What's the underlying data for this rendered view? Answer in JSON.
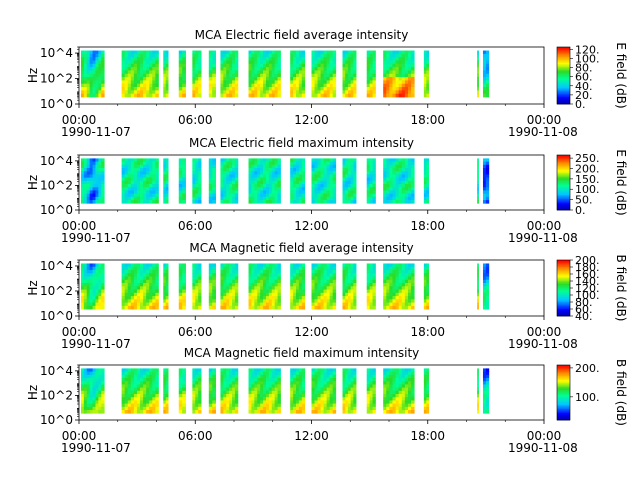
{
  "chart_data": [
    {
      "type": "heatmap",
      "title": "MCA  Electric field average intensity",
      "ylabel": "Hz",
      "y_scale": "log",
      "ylim": [
        1,
        30000
      ],
      "y_ticks": [
        "10^0",
        "10^2",
        "10^4"
      ],
      "x_ticks": [
        "00:00",
        "06:00",
        "12:00",
        "18:00",
        "00:00"
      ],
      "x_dates": [
        "1990-11-07",
        "1990-11-08"
      ],
      "colorbar_label": "E field (dB)",
      "colorbar_ticks": [
        "120.",
        "100.",
        "80.",
        "60.",
        "40.",
        "20.",
        "0."
      ],
      "colorbar_range": [
        0,
        125
      ],
      "colormap": "rainbow",
      "base": 45,
      "hot_low": true
    },
    {
      "type": "heatmap",
      "title": "MCA  Electric field maximum intensity",
      "ylabel": "Hz",
      "y_scale": "log",
      "ylim": [
        1,
        30000
      ],
      "y_ticks": [
        "10^0",
        "10^2",
        "10^4"
      ],
      "x_ticks": [
        "00:00",
        "06:00",
        "12:00",
        "18:00",
        "00:00"
      ],
      "x_dates": [
        "1990-11-07",
        "1990-11-08"
      ],
      "colorbar_label": "E field (dB)",
      "colorbar_ticks": [
        "250.",
        "200.",
        "150.",
        "100.",
        "50.",
        "0."
      ],
      "colorbar_range": [
        0,
        265
      ],
      "colormap": "rainbow",
      "base": 95,
      "hot_low": false
    },
    {
      "type": "heatmap",
      "title": "MCA  Magnetic field average intensity",
      "ylabel": "Hz",
      "y_scale": "log",
      "ylim": [
        1,
        30000
      ],
      "y_ticks": [
        "10^0",
        "10^2",
        "10^4"
      ],
      "x_ticks": [
        "00:00",
        "06:00",
        "12:00",
        "18:00",
        "00:00"
      ],
      "x_dates": [
        "1990-11-07",
        "1990-11-08"
      ],
      "colorbar_label": "B field (dB)",
      "colorbar_ticks": [
        "200.",
        "180.",
        "160.",
        "140.",
        "120.",
        "100.",
        "80.",
        "60.",
        "40."
      ],
      "colorbar_range": [
        40,
        200
      ],
      "colormap": "rainbow",
      "base": 110,
      "hot_low": true
    },
    {
      "type": "heatmap",
      "title": "MCA  Magnetic field maximum intensity",
      "ylabel": "Hz",
      "y_scale": "log",
      "ylim": [
        1,
        30000
      ],
      "y_ticks": [
        "10^0",
        "10^2",
        "10^4"
      ],
      "x_ticks": [
        "00:00",
        "06:00",
        "12:00",
        "18:00",
        "00:00"
      ],
      "x_dates": [
        "1990-11-07",
        "1990-11-08"
      ],
      "colorbar_label": "B field (dB)",
      "colorbar_ticks": [
        "200.",
        "100."
      ],
      "colorbar_range": [
        20,
        210
      ],
      "colormap": "rainbow",
      "base": 125,
      "hot_low": true
    }
  ],
  "data_intervals_hours": [
    [
      0.1,
      1.3
    ],
    [
      2.2,
      4.1
    ],
    [
      4.35,
      4.6
    ],
    [
      5.15,
      5.5
    ],
    [
      5.85,
      6.3
    ],
    [
      6.7,
      7.05
    ],
    [
      7.3,
      8.2
    ],
    [
      8.75,
      10.4
    ],
    [
      10.9,
      11.65
    ],
    [
      12.0,
      13.25
    ],
    [
      13.6,
      14.3
    ],
    [
      14.85,
      15.3
    ],
    [
      15.7,
      17.3
    ],
    [
      17.8,
      18.05
    ],
    [
      20.55,
      20.62
    ],
    [
      20.85,
      21.15
    ]
  ]
}
